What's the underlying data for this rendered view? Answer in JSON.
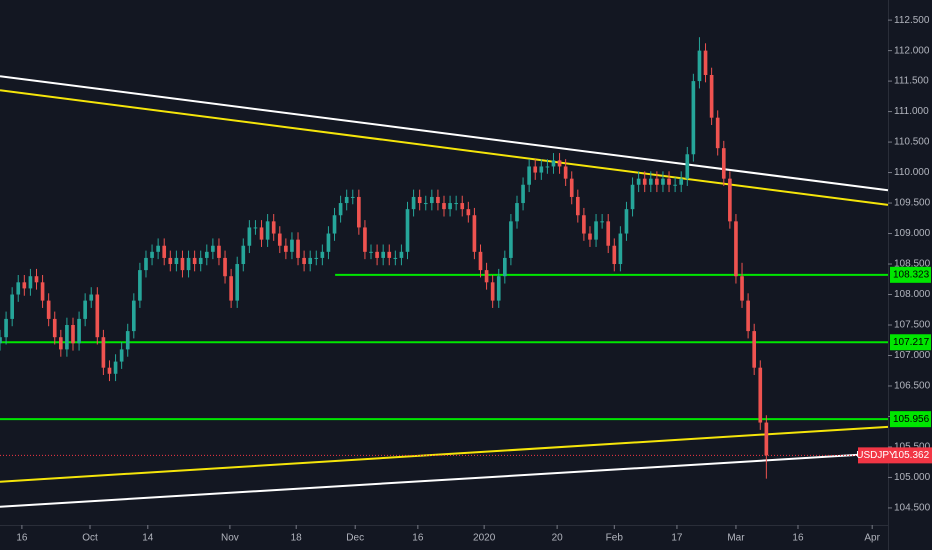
{
  "chart_data": {
    "type": "candlestick",
    "xlim": [
      0,
      146
    ],
    "ylim": [
      104.22,
      112.83
    ],
    "xticks": [
      {
        "value": 3.6,
        "label": "16"
      },
      {
        "value": 14.8,
        "label": "Oct"
      },
      {
        "value": 24.3,
        "label": "14"
      },
      {
        "value": 37.8,
        "label": "Nov"
      },
      {
        "value": 48.7,
        "label": "18"
      },
      {
        "value": 58.4,
        "label": "Dec"
      },
      {
        "value": 68.7,
        "label": "16"
      },
      {
        "value": 79.6,
        "label": "2020"
      },
      {
        "value": 91.6,
        "label": "20"
      },
      {
        "value": 101,
        "label": "Feb"
      },
      {
        "value": 111.3,
        "label": "17"
      },
      {
        "value": 121,
        "label": "Mar"
      },
      {
        "value": 131.2,
        "label": "16"
      },
      {
        "value": 143.4,
        "label": "Apr"
      }
    ],
    "yticks": [
      {
        "value": 104.5,
        "label": "104.500"
      },
      {
        "value": 105,
        "label": "105.000"
      },
      {
        "value": 105.5,
        "label": "105.500"
      },
      {
        "value": 106,
        "label": "106.000"
      },
      {
        "value": 106.5,
        "label": "106.500"
      },
      {
        "value": 107,
        "label": "107.000"
      },
      {
        "value": 107.5,
        "label": "107.500"
      },
      {
        "value": 108,
        "label": "108.000"
      },
      {
        "value": 108.5,
        "label": "108.500"
      },
      {
        "value": 109,
        "label": "109.000"
      },
      {
        "value": 109.5,
        "label": "109.500"
      },
      {
        "value": 110,
        "label": "110.000"
      },
      {
        "value": 110.5,
        "label": "110.500"
      },
      {
        "value": 111,
        "label": "111.000"
      },
      {
        "value": 111.5,
        "label": "111.500"
      },
      {
        "value": 112,
        "label": "112.000"
      },
      {
        "value": 112.5,
        "label": "112.500"
      }
    ],
    "series": [
      {
        "name": "USDJPY",
        "up_color": "#26a69a",
        "down_color": "#ef5350",
        "x": [
          0,
          1,
          2,
          3,
          4,
          5,
          6,
          7,
          8,
          9,
          10,
          11,
          12,
          13,
          14,
          15,
          16,
          17,
          18,
          19,
          20,
          21,
          22,
          23,
          24,
          25,
          26,
          27,
          28,
          29,
          30,
          31,
          32,
          33,
          34,
          35,
          36,
          37,
          38,
          39,
          40,
          41,
          42,
          43,
          44,
          45,
          46,
          47,
          48,
          49,
          50,
          51,
          52,
          53,
          54,
          55,
          56,
          57,
          58,
          59,
          60,
          61,
          62,
          63,
          64,
          65,
          66,
          67,
          68,
          69,
          70,
          71,
          72,
          73,
          74,
          75,
          76,
          77,
          78,
          79,
          80,
          81,
          82,
          83,
          84,
          85,
          86,
          87,
          88,
          89,
          90,
          91,
          92,
          93,
          94,
          95,
          96,
          97,
          98,
          99,
          100,
          101,
          102,
          103,
          104,
          105,
          106,
          107,
          108,
          109,
          110,
          111,
          112,
          113,
          114,
          115,
          116,
          117,
          118,
          119,
          120,
          121,
          122,
          123,
          124,
          125,
          126
        ],
        "open": [
          107.2,
          107.3,
          107.6,
          108.0,
          108.2,
          108.1,
          108.3,
          108.2,
          107.9,
          107.6,
          107.3,
          107.1,
          107.5,
          107.2,
          107.6,
          107.9,
          108.0,
          107.3,
          106.8,
          106.7,
          106.9,
          107.1,
          107.4,
          107.9,
          108.4,
          108.6,
          108.7,
          108.8,
          108.6,
          108.5,
          108.6,
          108.4,
          108.6,
          108.5,
          108.6,
          108.7,
          108.8,
          108.6,
          108.3,
          107.9,
          108.5,
          108.8,
          109.1,
          109.1,
          108.9,
          109.2,
          109.0,
          108.8,
          108.7,
          108.9,
          108.6,
          108.5,
          108.6,
          108.6,
          108.7,
          109.0,
          109.3,
          109.5,
          109.6,
          109.6,
          109.1,
          108.7,
          108.7,
          108.6,
          108.7,
          108.6,
          108.6,
          108.7,
          109.4,
          109.6,
          109.5,
          109.5,
          109.6,
          109.5,
          109.4,
          109.5,
          109.5,
          109.4,
          109.3,
          108.7,
          108.4,
          108.2,
          107.9,
          108.3,
          108.6,
          109.2,
          109.5,
          109.8,
          110.1,
          110.0,
          110.1,
          110.1,
          110.2,
          110.1,
          109.9,
          109.6,
          109.3,
          109.0,
          108.9,
          109.2,
          109.2,
          108.8,
          108.5,
          109.0,
          109.4,
          109.8,
          109.9,
          109.8,
          109.9,
          109.8,
          109.9,
          109.8,
          109.8,
          109.9,
          110.3,
          111.5,
          112.0,
          111.6,
          110.9,
          110.4,
          109.9,
          109.2,
          108.3,
          107.9,
          107.4,
          106.8,
          105.9
        ],
        "high": [
          107.42,
          107.72,
          108.12,
          108.32,
          108.32,
          108.42,
          108.42,
          108.32,
          108.02,
          107.72,
          107.42,
          107.62,
          107.62,
          107.72,
          108.02,
          108.12,
          108.12,
          107.42,
          106.92,
          107.02,
          107.22,
          107.52,
          108.02,
          108.52,
          108.72,
          108.82,
          108.92,
          108.92,
          108.72,
          108.72,
          108.72,
          108.72,
          108.72,
          108.72,
          108.82,
          108.92,
          108.92,
          108.72,
          108.42,
          108.62,
          108.92,
          109.22,
          109.22,
          109.22,
          109.32,
          109.32,
          109.12,
          108.92,
          109.02,
          109.02,
          108.72,
          108.72,
          108.72,
          108.82,
          109.12,
          109.42,
          109.62,
          109.72,
          109.72,
          109.72,
          109.22,
          108.82,
          108.82,
          108.82,
          108.82,
          108.72,
          108.82,
          109.52,
          109.72,
          109.72,
          109.62,
          109.72,
          109.72,
          109.62,
          109.62,
          109.62,
          109.62,
          109.52,
          109.42,
          108.82,
          108.52,
          108.32,
          108.42,
          108.72,
          109.32,
          109.62,
          109.92,
          110.22,
          110.22,
          110.22,
          110.22,
          110.32,
          110.32,
          110.22,
          110.02,
          109.72,
          109.42,
          109.12,
          109.32,
          109.32,
          109.32,
          108.92,
          109.12,
          109.52,
          109.92,
          110.02,
          110.02,
          110.02,
          110.02,
          110.02,
          110.02,
          109.92,
          110.02,
          110.42,
          111.62,
          112.22,
          112.12,
          111.72,
          111.02,
          110.52,
          110.02,
          109.32,
          108.52,
          108.02,
          107.52,
          106.92,
          106.02
        ],
        "low": [
          107.08,
          107.18,
          107.48,
          107.88,
          107.98,
          107.98,
          108.08,
          107.78,
          107.48,
          107.18,
          106.98,
          106.98,
          107.08,
          107.08,
          107.48,
          107.78,
          107.18,
          106.68,
          106.58,
          106.58,
          106.78,
          106.98,
          107.28,
          107.78,
          108.28,
          108.48,
          108.58,
          108.48,
          108.38,
          108.38,
          108.28,
          108.28,
          108.38,
          108.38,
          108.48,
          108.58,
          108.48,
          108.18,
          107.78,
          107.78,
          108.38,
          108.68,
          108.98,
          108.78,
          108.78,
          108.88,
          108.68,
          108.58,
          108.58,
          108.48,
          108.38,
          108.38,
          108.48,
          108.48,
          108.58,
          108.88,
          109.18,
          109.38,
          109.48,
          108.98,
          108.58,
          108.58,
          108.48,
          108.48,
          108.48,
          108.48,
          108.48,
          108.58,
          109.28,
          109.38,
          109.38,
          109.38,
          109.38,
          109.28,
          109.28,
          109.38,
          109.28,
          109.18,
          108.58,
          108.28,
          108.08,
          107.78,
          107.78,
          108.18,
          108.48,
          109.08,
          109.38,
          109.68,
          109.88,
          109.88,
          109.98,
          109.98,
          109.98,
          109.78,
          109.48,
          109.18,
          108.88,
          108.78,
          108.78,
          109.08,
          108.68,
          108.38,
          108.38,
          108.88,
          109.28,
          109.68,
          109.68,
          109.68,
          109.68,
          109.68,
          109.68,
          109.68,
          109.68,
          109.78,
          110.18,
          111.38,
          111.48,
          110.78,
          110.28,
          109.78,
          109.08,
          108.18,
          107.78,
          107.28,
          106.68,
          105.78,
          104.98
        ],
        "close": [
          107.3,
          107.6,
          108.0,
          108.2,
          108.1,
          108.3,
          108.2,
          107.9,
          107.6,
          107.3,
          107.1,
          107.5,
          107.2,
          107.6,
          107.9,
          108.0,
          107.3,
          106.8,
          106.7,
          106.9,
          107.1,
          107.4,
          107.9,
          108.4,
          108.6,
          108.7,
          108.8,
          108.6,
          108.5,
          108.6,
          108.4,
          108.6,
          108.5,
          108.6,
          108.7,
          108.8,
          108.6,
          108.3,
          107.9,
          108.5,
          108.8,
          109.1,
          109.1,
          108.9,
          109.2,
          109.0,
          108.8,
          108.7,
          108.9,
          108.6,
          108.5,
          108.6,
          108.6,
          108.7,
          109.0,
          109.3,
          109.5,
          109.6,
          109.6,
          109.1,
          108.7,
          108.7,
          108.6,
          108.7,
          108.6,
          108.6,
          108.7,
          109.4,
          109.6,
          109.5,
          109.5,
          109.6,
          109.5,
          109.4,
          109.5,
          109.5,
          109.4,
          109.3,
          108.7,
          108.4,
          108.2,
          107.9,
          108.3,
          108.6,
          109.2,
          109.5,
          109.8,
          110.1,
          110.0,
          110.1,
          110.1,
          110.2,
          110.1,
          109.9,
          109.6,
          109.3,
          109.0,
          108.9,
          109.2,
          109.2,
          108.8,
          108.5,
          109.0,
          109.4,
          109.8,
          109.9,
          109.8,
          109.9,
          109.8,
          109.9,
          109.8,
          109.8,
          109.9,
          110.3,
          111.5,
          112.0,
          111.6,
          110.9,
          110.4,
          109.9,
          109.2,
          108.3,
          107.9,
          107.4,
          106.8,
          105.9,
          105.362
        ]
      }
    ],
    "last_price": {
      "value": 105.362,
      "color": "#f23645"
    },
    "trend_lines": [
      {
        "color": "#ffffff",
        "x": [
          0,
          146
        ],
        "y": [
          111.58,
          109.71
        ]
      },
      {
        "color": "#f5e50a",
        "x": [
          0,
          146
        ],
        "y": [
          111.35,
          109.47
        ]
      },
      {
        "color": "#f5e50a",
        "x": [
          0,
          146
        ],
        "y": [
          104.93,
          105.83
        ]
      },
      {
        "color": "#ffffff",
        "x": [
          0,
          146
        ],
        "y": [
          104.52,
          105.4
        ]
      }
    ],
    "levels": [
      {
        "value": 108.323,
        "color": "#00e600",
        "x_start": 55.1
      },
      {
        "value": 107.217,
        "color": "#00e600",
        "x_start": 0
      },
      {
        "value": 105.956,
        "color": "#00e600",
        "x_start": 0
      }
    ]
  }
}
